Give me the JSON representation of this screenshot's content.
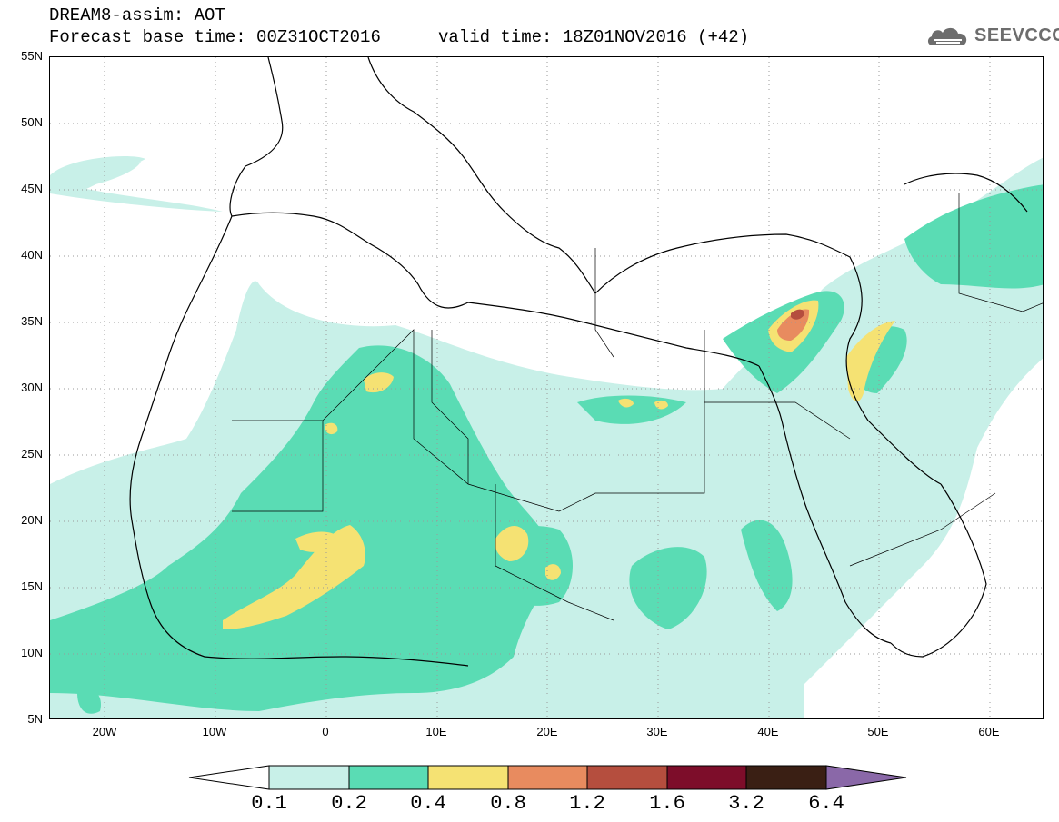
{
  "header": {
    "line1": "DREAM8-assim: AOT",
    "line2": "Forecast base time: 00Z31OCT2016",
    "line3": "valid time: 18Z01NOV2016 (+42)"
  },
  "logo": {
    "text": "SEEVCCC",
    "icon": "cloud-icon"
  },
  "map": {
    "lat_labels": [
      "55N",
      "50N",
      "45N",
      "40N",
      "35N",
      "30N",
      "25N",
      "20N",
      "15N",
      "10N",
      "5N"
    ],
    "lon_labels": [
      "20W",
      "10W",
      "0",
      "10E",
      "20E",
      "30E",
      "40E",
      "50E",
      "60E"
    ],
    "lon_range": [
      -25,
      65
    ],
    "lat_range": [
      5,
      55
    ]
  },
  "colorbar": {
    "labels": [
      "0.1",
      "0.2",
      "0.4",
      "0.8",
      "1.2",
      "1.6",
      "3.2",
      "6.4"
    ],
    "colors": [
      "#c8f0e8",
      "#5adcb4",
      "#f5e273",
      "#e88b5f",
      "#b54e3e",
      "#7d0d2a",
      "#3a1f14",
      "#8a68a8"
    ],
    "under_color": "#ffffff"
  }
}
